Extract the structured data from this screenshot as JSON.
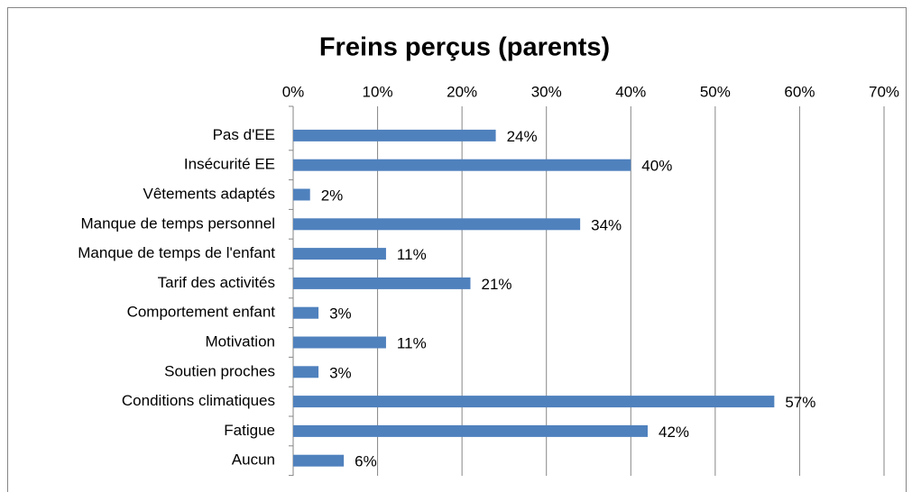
{
  "chart_data": {
    "type": "bar",
    "orientation": "horizontal",
    "title": "Freins perçus (parents)",
    "categories": [
      "Pas d'EE",
      "Insécurité EE",
      "Vêtements adaptés",
      "Manque de temps personnel",
      "Manque de temps de l'enfant",
      "Tarif des activités",
      "Comportement enfant",
      "Motivation",
      "Soutien proches",
      "Conditions climatiques",
      "Fatigue",
      "Aucun"
    ],
    "values": [
      24,
      40,
      2,
      34,
      11,
      21,
      3,
      11,
      3,
      57,
      42,
      6
    ],
    "value_labels": [
      "24%",
      "40%",
      "2%",
      "34%",
      "11%",
      "21%",
      "3%",
      "11%",
      "3%",
      "57%",
      "42%",
      "6%"
    ],
    "color": "#4f81bd",
    "xlim": [
      0,
      70
    ],
    "xticks": [
      {
        "value": 0,
        "label": "0%"
      },
      {
        "value": 10,
        "label": "10%"
      },
      {
        "value": 20,
        "label": "20%"
      },
      {
        "value": 30,
        "label": "30%"
      },
      {
        "value": 40,
        "label": "40%"
      },
      {
        "value": 50,
        "label": "50%"
      },
      {
        "value": 60,
        "label": "60%"
      },
      {
        "value": 70,
        "label": "70%"
      }
    ],
    "grid": true
  }
}
